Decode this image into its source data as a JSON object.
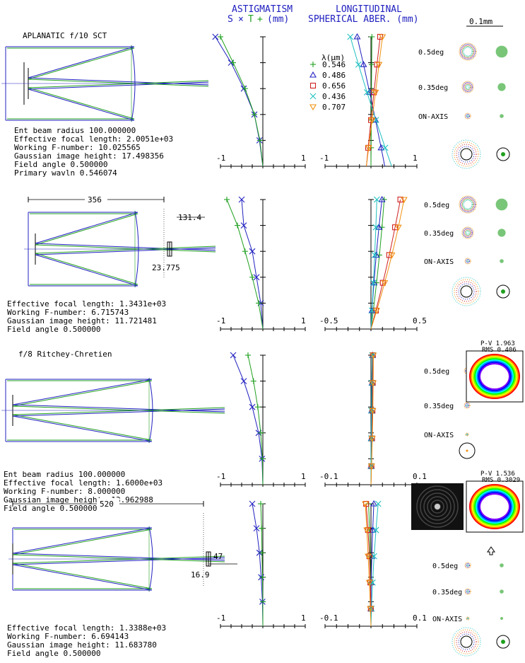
{
  "header": {
    "astig_title": "ASTIGMATISM",
    "astig_legend_s": "S",
    "astig_legend_t": "T",
    "astig_unit": "(mm)",
    "long_title": "LONGITUDINAL",
    "long_subtitle": "SPHERICAL ABER. (mm)",
    "scale_bar_label": "0.1mm"
  },
  "wavelength_legend": {
    "title": "λ(μm)",
    "items": [
      {
        "label": "0.546",
        "color": "#20a020",
        "marker": "plus"
      },
      {
        "label": "0.486",
        "color": "#2020c0",
        "marker": "triangle"
      },
      {
        "label": "0.656",
        "color": "#d02020",
        "marker": "square"
      },
      {
        "label": "0.436",
        "color": "#20c0c0",
        "marker": "cross"
      },
      {
        "label": "0.707",
        "color": "#f09010",
        "marker": "triangle-down"
      }
    ]
  },
  "panels": [
    {
      "title": "APLANATIC f/10 SCT",
      "specs": [
        "Ent beam radius  100.000000",
        "Effective focal length:  2.0051e+03",
        "Working F-number:          10.025565",
        "Gaussian image height:     17.498356",
        "Field angle          0.500000",
        "Primary wavln      0.546074"
      ],
      "dims": [],
      "astig": {
        "xmin": "-1",
        "xmax": "1",
        "S": [
          -1.12,
          -0.75,
          -0.45,
          -0.2,
          -0.08,
          0
        ],
        "T": [
          -1.0,
          -0.7,
          -0.42,
          -0.2,
          -0.07,
          0
        ]
      },
      "spher": {
        "xmin": "-1",
        "xmax": "1",
        "curves": [
          {
            "color": "#20a020",
            "x0": 0.02,
            "x1": 0.0,
            "a": 0.0
          },
          {
            "color": "#2020c0",
            "x0": -0.3,
            "x1": 0.3,
            "a": 0.55
          },
          {
            "color": "#d02020",
            "x0": 0.2,
            "x1": -0.1,
            "a": -0.25
          },
          {
            "color": "#20c0c0",
            "x0": -0.45,
            "x1": 0.45,
            "a": -0.9
          },
          {
            "color": "#f09010",
            "x0": 0.25,
            "x1": -0.1,
            "a": -0.05
          }
        ]
      },
      "spots": [
        {
          "label": "0.5deg"
        },
        {
          "label": "0.35deg"
        },
        {
          "label": "ON-AXIS"
        }
      ]
    },
    {
      "title": "",
      "specs": [
        "Effective focal length:  1.3431e+03",
        "Working F-number:          6.715743",
        "Gaussian image height:     11.721481",
        "Field angle          0.500000"
      ],
      "dims": [
        "356",
        "131.4",
        "23.775"
      ],
      "astig": {
        "xmin": "-1",
        "xmax": "1",
        "S": [
          -0.5,
          -0.45,
          -0.25,
          -0.15,
          -0.05,
          0
        ],
        "T": [
          -0.85,
          -0.6,
          -0.42,
          -0.25,
          -0.1,
          0
        ]
      },
      "spher": {
        "xmin": "-0.5",
        "xmax": "0.5",
        "curves": [
          {
            "color": "#20a020",
            "x0": 0.18,
            "x1": 0.0,
            "a": 0.5
          },
          {
            "color": "#2020c0",
            "x0": 0.15,
            "x1": 0.0,
            "a": -0.55
          },
          {
            "color": "#d02020",
            "x0": 0.4,
            "x1": 0.0,
            "a": 0.8
          },
          {
            "color": "#20c0c0",
            "x0": 0.08,
            "x1": 0.0,
            "a": 0.2
          },
          {
            "color": "#f09010",
            "x0": 0.45,
            "x1": 0.0,
            "a": 1.1
          }
        ]
      },
      "spots": [
        {
          "label": "0.5deg"
        },
        {
          "label": "0.35deg"
        },
        {
          "label": "ON-AXIS"
        }
      ]
    },
    {
      "title": "f/8 Ritchey-Chretien",
      "specs": [
        "Ent beam radius  100.000000",
        "Effective focal length:  1.6000e+03",
        "Working F-number:          8.000000",
        "Gaussian image height:     13.962988",
        "Field angle         0.500000"
      ],
      "dims": [],
      "astig": {
        "xmin": "-1",
        "xmax": "1",
        "S": [
          -0.7,
          -0.45,
          -0.25,
          -0.1,
          -0.02,
          0
        ],
        "T": [
          -0.35,
          -0.22,
          -0.12,
          -0.05,
          -0.01,
          0
        ]
      },
      "spher": {
        "xmin": "-0.1",
        "xmax": "0.1",
        "curves": [
          {
            "color": "#20a020",
            "x0": 0.01,
            "x1": 0.0,
            "a": 0.05
          },
          {
            "color": "#2020c0",
            "x0": 0.01,
            "x1": 0.0,
            "a": -0.05
          },
          {
            "color": "#d02020",
            "x0": 0.012,
            "x1": 0.0,
            "a": 0.1
          },
          {
            "color": "#20c0c0",
            "x0": 0.008,
            "x1": 0.0,
            "a": -0.08
          },
          {
            "color": "#f09010",
            "x0": 0.015,
            "x1": 0.0,
            "a": 0.12
          }
        ]
      },
      "spots": [
        {
          "label": "0.5deg"
        },
        {
          "label": "0.35deg"
        },
        {
          "label": "ON-AXIS"
        }
      ],
      "interferogram": {
        "pv": "P-V 1.963",
        "rms": "RMS 0.406"
      }
    },
    {
      "title": "",
      "specs": [
        "Effective focal length:  1.3388e+03",
        "Working F-number:          6.694143",
        "Gaussian image height:     11.683780",
        "Field angle          0.500000"
      ],
      "dims": [
        "520",
        "47",
        "16.9"
      ],
      "astig": {
        "xmin": "-1",
        "xmax": "1",
        "S": [
          -0.25,
          -0.15,
          -0.08,
          -0.04,
          -0.01,
          0
        ],
        "T": [
          -0.05,
          -0.03,
          -0.02,
          -0.01,
          0.0,
          0
        ]
      },
      "spher": {
        "xmin": "-0.1",
        "xmax": "0.1",
        "curves": [
          {
            "color": "#20a020",
            "x0": -0.015,
            "x1": 0.0,
            "a": 0.15
          },
          {
            "color": "#2020c0",
            "x0": 0.018,
            "x1": 0.0,
            "a": -0.2
          },
          {
            "color": "#d02020",
            "x0": -0.03,
            "x1": 0.0,
            "a": 0.3
          },
          {
            "color": "#20c0c0",
            "x0": 0.045,
            "x1": 0.0,
            "a": -0.25
          },
          {
            "color": "#f09010",
            "x0": -0.035,
            "x1": 0.0,
            "a": 0.1
          }
        ]
      },
      "spots": [
        {
          "label": "0.5deg"
        },
        {
          "label": "0.35deg"
        },
        {
          "label": "ON-AXIS"
        }
      ],
      "interferogram": {
        "pv": "P-V 1.536",
        "rms": "RMS 0.3029"
      }
    }
  ]
}
